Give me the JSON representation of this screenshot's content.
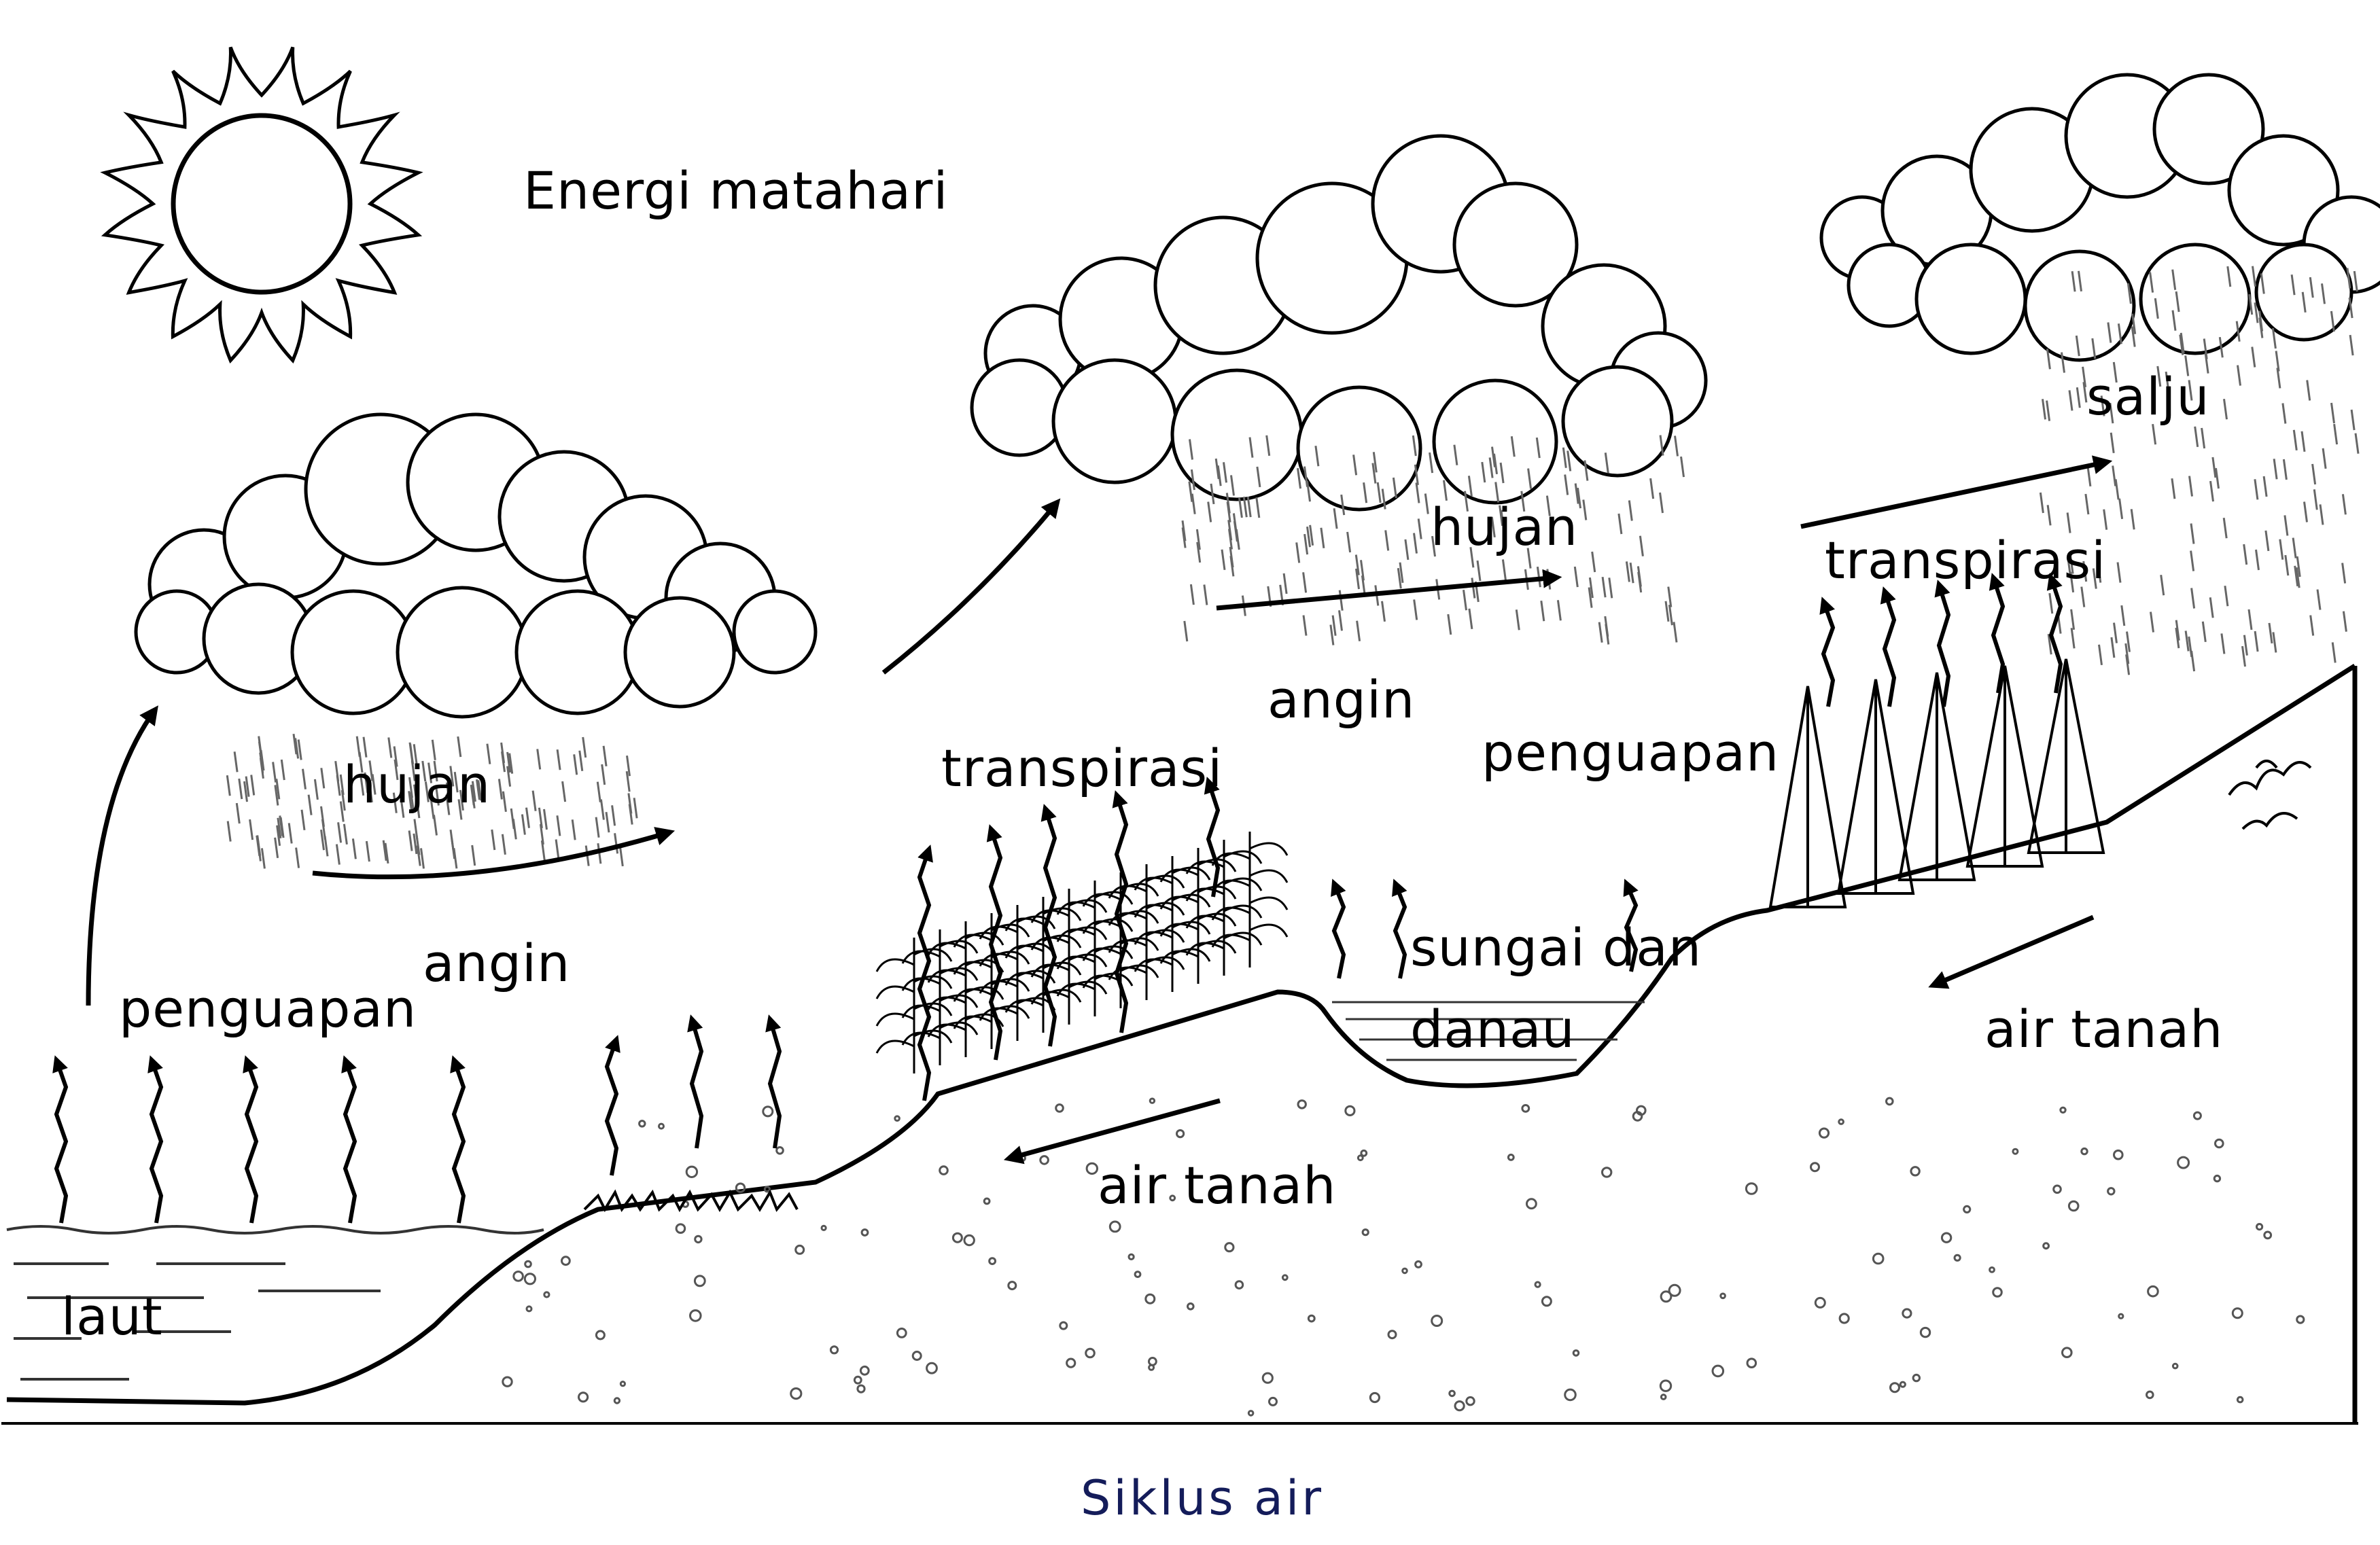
{
  "diagram": {
    "caption": "Siklus air",
    "labels": {
      "energy": "Energi matahari",
      "rain_1": "hujan",
      "rain_2": "hujan",
      "wind_1": "angin",
      "wind_2": "angin",
      "evaporation_sea": "penguapan",
      "evaporation_lake": "penguapan",
      "transpiration_crops": "transpirasi",
      "transpiration_trees": "transpirasi",
      "snow": "salju",
      "river_line1": "sungai dan",
      "river_line2": "danau",
      "groundwater_1": "air tanah",
      "groundwater_2": "air tanah",
      "sea": "laut"
    }
  }
}
